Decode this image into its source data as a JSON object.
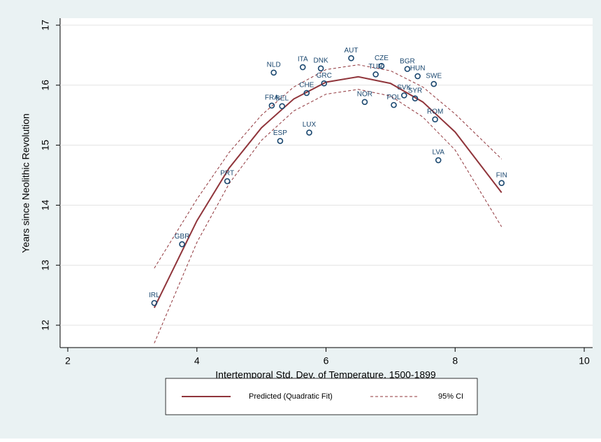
{
  "chart_data": {
    "type": "scatter",
    "x_label": "Intertemporal Std. Dev. of Temperature, 1500-1899",
    "y_label": "Years since Neolithic Revolution",
    "xlim": [
      2,
      10
    ],
    "xticks": [
      2,
      4,
      6,
      8,
      10
    ],
    "ylim": [
      12,
      17
    ],
    "yticks": [
      12,
      13,
      14,
      15,
      16,
      17
    ],
    "grid": true,
    "color": "#1a476f",
    "point_labels": [
      "IRL",
      "GBR",
      "PRT",
      "FRA",
      "BEL",
      "ESP",
      "NLD",
      "ITA",
      "LUX",
      "CHE",
      "DNK",
      "GRC",
      "AUT",
      "NOR",
      "TUR",
      "CZE",
      "POL",
      "SVK",
      "BGR",
      "SYR",
      "HUN",
      "SWE",
      "ROM",
      "LVA",
      "FIN"
    ],
    "x": [
      3.34,
      3.77,
      4.47,
      5.16,
      5.32,
      5.29,
      5.19,
      5.64,
      5.74,
      5.7,
      5.92,
      5.97,
      6.39,
      6.6,
      6.77,
      6.86,
      7.05,
      7.21,
      7.26,
      7.38,
      7.42,
      7.67,
      7.69,
      7.74,
      8.72
    ],
    "values": [
      12.37,
      13.35,
      14.4,
      15.66,
      15.65,
      15.07,
      16.21,
      16.3,
      15.21,
      15.87,
      16.28,
      16.03,
      16.45,
      15.72,
      16.18,
      16.32,
      15.67,
      15.83,
      16.27,
      15.78,
      16.15,
      16.02,
      15.43,
      14.75,
      14.37
    ],
    "fit": {
      "name": "Predicted (Quadratic Fit)",
      "color": "#90353b",
      "x": [
        3.34,
        4,
        4.5,
        5,
        5.5,
        6,
        6.5,
        7,
        7.5,
        8,
        8.72
      ],
      "values": [
        12.29,
        13.74,
        14.62,
        15.29,
        15.77,
        16.05,
        16.14,
        16.03,
        15.72,
        15.22,
        14.21
      ]
    },
    "ci": {
      "name": "95% CI",
      "color": "#90353b",
      "x": [
        3.34,
        4,
        4.5,
        5,
        5.5,
        6,
        6.5,
        7,
        7.5,
        8,
        8.72
      ],
      "upper": [
        12.95,
        14.1,
        14.88,
        15.5,
        15.97,
        16.26,
        16.34,
        16.24,
        15.97,
        15.52,
        14.77
      ],
      "lower": [
        11.7,
        13.38,
        14.36,
        15.08,
        15.57,
        15.85,
        15.93,
        15.82,
        15.47,
        14.92,
        13.64
      ]
    }
  }
}
